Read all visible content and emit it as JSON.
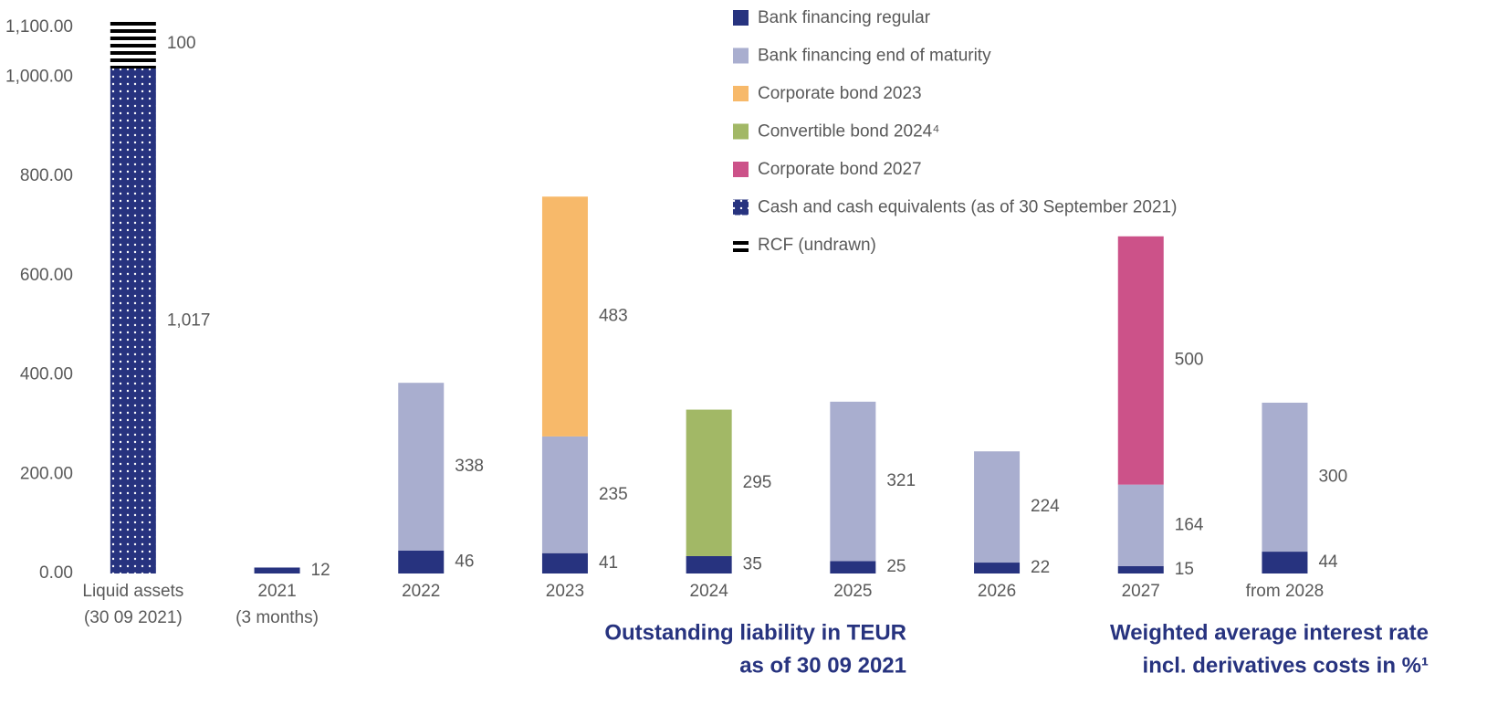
{
  "chart_data": {
    "type": "bar",
    "stacked": true,
    "categories": [
      [
        "Liquid assets",
        "(30 09 2021)"
      ],
      [
        "2021",
        "(3 months)"
      ],
      "2022",
      "2023",
      "2024",
      "2025",
      "2026",
      "2027",
      "from 2028"
    ],
    "series": [
      {
        "name": "Bank financing regular",
        "color": "#27337f",
        "values": [
          null,
          12,
          46,
          41,
          35,
          25,
          22,
          15,
          44
        ]
      },
      {
        "name": "Bank financing end of maturity",
        "color": "#a9aecf",
        "values": [
          null,
          null,
          338,
          235,
          null,
          321,
          224,
          164,
          300
        ]
      },
      {
        "name": "Corporate bond 2023",
        "color": "#f7b96a",
        "values": [
          null,
          null,
          null,
          483,
          null,
          null,
          null,
          null,
          null
        ]
      },
      {
        "name": "Convertible bond 2024⁴",
        "color": "#a2b866",
        "values": [
          null,
          null,
          null,
          null,
          295,
          null,
          null,
          null,
          null
        ]
      },
      {
        "name": "Corporate bond 2027",
        "color": "#cc5289",
        "values": [
          null,
          null,
          null,
          null,
          null,
          null,
          null,
          500,
          null
        ]
      },
      {
        "name": "Cash and cash equivalents (as of 30 September 2021)",
        "color": "#27337f",
        "pattern": "dots",
        "values": [
          1017,
          null,
          null,
          null,
          null,
          null,
          null,
          null,
          null
        ],
        "value_labels": [
          "1,017",
          null,
          null,
          null,
          null,
          null,
          null,
          null,
          null
        ]
      },
      {
        "name": "RCF (undrawn)",
        "color": "#000000",
        "pattern": "stripes",
        "values": [
          100,
          null,
          null,
          null,
          null,
          null,
          null,
          null,
          null
        ]
      }
    ],
    "ylim": [
      0,
      1120
    ],
    "yticks": [
      {
        "value": 0,
        "label": "0.00"
      },
      {
        "value": 200,
        "label": "200.00"
      },
      {
        "value": 400,
        "label": "400.00"
      },
      {
        "value": 600,
        "label": "600.00"
      },
      {
        "value": 800,
        "label": "800.00"
      },
      {
        "value": 1000,
        "label": "1,000.00"
      },
      {
        "value": 1100,
        "label": "1,100.00"
      }
    ],
    "annotations": [
      [
        "Outstanding liability in TEUR",
        "as of 30 09 2021"
      ],
      [
        "Weighted average interest rate",
        "incl. derivatives costs in %¹"
      ]
    ]
  }
}
